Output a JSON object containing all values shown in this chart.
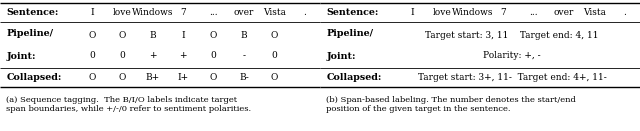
{
  "fig_width": 6.4,
  "fig_height": 1.31,
  "dpi": 100,
  "left": {
    "sentence_label": "Sentence:",
    "sentence_tokens": [
      "I",
      "love",
      "Windows",
      "7",
      "...",
      "over",
      "Vista",
      "."
    ],
    "pipeline_label_line1": "Pipeline/",
    "pipeline_label_line2": "Joint:",
    "pipeline_row1": [
      "O",
      "O",
      "B",
      "I",
      "O",
      "B",
      "O"
    ],
    "pipeline_row2": [
      "0",
      "0",
      "+",
      "+",
      "0",
      "-",
      "0"
    ],
    "collapsed_label": "Collapsed:",
    "collapsed_row": [
      "O",
      "O",
      "B+",
      "I+",
      "O",
      "B-",
      "O"
    ],
    "caption": "(a) Sequence tagging.  The B/I/O labels indicate target\nspan boundaries, while +/-/0 refer to sentiment polarities."
  },
  "right": {
    "sentence_label": "Sentence:",
    "sentence_tokens": [
      "I",
      "love",
      "Windows",
      "7",
      "...",
      "over",
      "Vista",
      "."
    ],
    "pipeline_label_line1": "Pipeline/",
    "pipeline_label_line2": "Joint:",
    "pipeline_line1": "Target start: 3, 11    Target end: 4, 11",
    "pipeline_line2": "Polarity: +, -",
    "collapsed_label": "Collapsed:",
    "collapsed_content": "Target start: 3+, 11-  Target end: 4+, 11-",
    "caption": "(b) Span-based labeling. The number denotes the start/end\nposition of the given target in the sentence."
  },
  "fs_bold": 6.8,
  "fs_cell": 6.5,
  "fs_caption": 6.0,
  "lw_thick": 1.0,
  "lw_thin": 0.6
}
